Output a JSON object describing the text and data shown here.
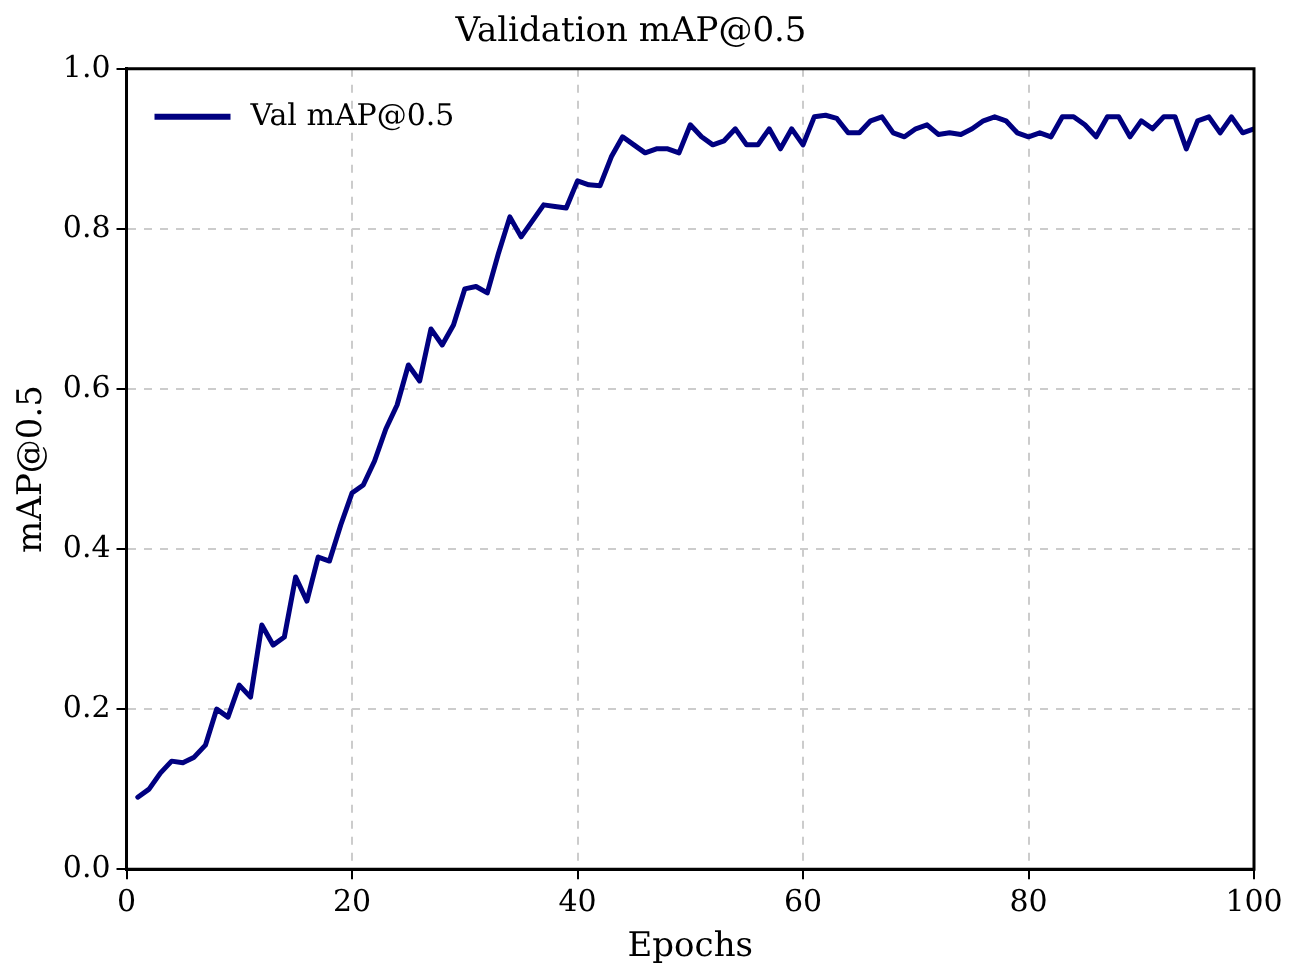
{
  "chart_data": {
    "type": "line",
    "title": "Validation mAP@0.5",
    "xlabel": "Epochs",
    "ylabel": "mAP@0.5",
    "x": [
      1,
      2,
      3,
      4,
      5,
      6,
      7,
      8,
      9,
      10,
      11,
      12,
      13,
      14,
      15,
      16,
      17,
      18,
      19,
      20,
      21,
      22,
      23,
      24,
      25,
      26,
      27,
      28,
      29,
      30,
      31,
      32,
      33,
      34,
      35,
      36,
      37,
      38,
      39,
      40,
      41,
      42,
      43,
      44,
      45,
      46,
      47,
      48,
      49,
      50,
      51,
      52,
      53,
      54,
      55,
      56,
      57,
      58,
      59,
      60,
      61,
      62,
      63,
      64,
      65,
      66,
      67,
      68,
      69,
      70,
      71,
      72,
      73,
      74,
      75,
      76,
      77,
      78,
      79,
      80,
      81,
      82,
      83,
      84,
      85,
      86,
      87,
      88,
      89,
      90,
      91,
      92,
      93,
      94,
      95,
      96,
      97,
      98,
      99,
      100
    ],
    "series": [
      {
        "name": "Val mAP@0.5",
        "color": "#000080",
        "values": [
          0.09,
          0.1,
          0.12,
          0.135,
          0.133,
          0.14,
          0.155,
          0.2,
          0.19,
          0.23,
          0.215,
          0.305,
          0.28,
          0.29,
          0.365,
          0.335,
          0.39,
          0.385,
          0.43,
          0.47,
          0.48,
          0.51,
          0.55,
          0.58,
          0.63,
          0.61,
          0.675,
          0.655,
          0.68,
          0.725,
          0.728,
          0.72,
          0.77,
          0.815,
          0.79,
          0.81,
          0.83,
          0.828,
          0.826,
          0.86,
          0.855,
          0.854,
          0.89,
          0.915,
          0.905,
          0.895,
          0.9,
          0.9,
          0.895,
          0.93,
          0.915,
          0.905,
          0.91,
          0.925,
          0.905,
          0.905,
          0.925,
          0.9,
          0.925,
          0.905,
          0.94,
          0.942,
          0.938,
          0.92,
          0.92,
          0.935,
          0.94,
          0.92,
          0.915,
          0.925,
          0.93,
          0.918,
          0.92,
          0.918,
          0.925,
          0.935,
          0.94,
          0.935,
          0.92,
          0.915,
          0.92,
          0.915,
          0.94,
          0.94,
          0.93,
          0.915,
          0.94,
          0.94,
          0.915,
          0.935,
          0.925,
          0.94,
          0.94,
          0.9,
          0.935,
          0.94,
          0.92,
          0.94,
          0.92,
          0.925
        ]
      }
    ],
    "xlim": [
      0,
      100
    ],
    "xticks": [
      0,
      20,
      40,
      60,
      80,
      100
    ],
    "ylim": [
      0,
      1
    ],
    "yticks": [
      {
        "value": 0,
        "label": "0.0"
      },
      0.2,
      0.4,
      0.6,
      0.8,
      {
        "value": 1,
        "label": "1.0"
      }
    ],
    "grid": true,
    "legend": "top left",
    "line_style": "solid",
    "marker": "none"
  }
}
